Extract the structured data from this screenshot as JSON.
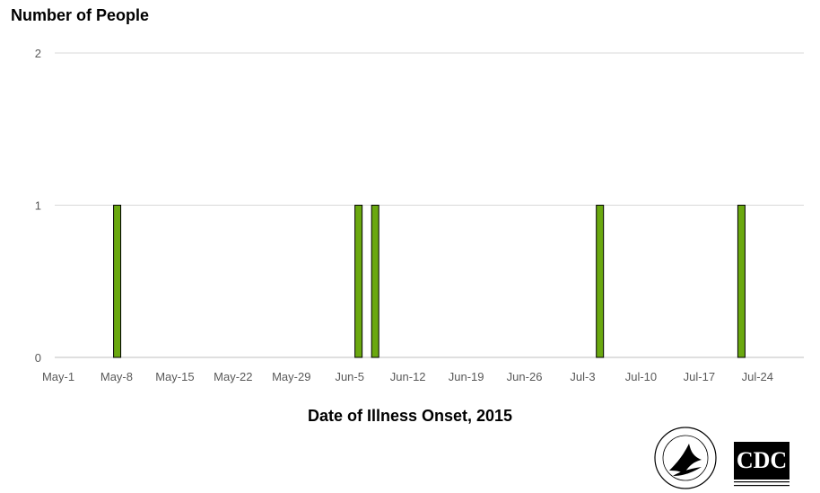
{
  "chart_data": {
    "type": "bar",
    "title": "",
    "xlabel": "Date of Illness Onset, 2015",
    "ylabel": "Number of People",
    "ylim": [
      0,
      2
    ],
    "y_ticks": [
      "0",
      "1",
      "2"
    ],
    "x_tick_labels": [
      "May-1",
      "May-8",
      "May-15",
      "May-22",
      "May-29",
      "Jun-5",
      "Jun-12",
      "Jun-19",
      "Jun-26",
      "Jul-3",
      "Jul-10",
      "Jul-17",
      "Jul-24"
    ],
    "x_range": [
      "2015-05-01",
      "2015-07-30"
    ],
    "categories": [
      "2015-05-08",
      "2015-06-06",
      "2015-06-08",
      "2015-07-05",
      "2015-07-22"
    ],
    "values": [
      1,
      1,
      1,
      1,
      1
    ],
    "grid": true,
    "legend": "none",
    "bar_color": "#6aa80f",
    "bar_edge_color": "#000000"
  },
  "logos": {
    "hhs_ring_text": "DEPARTMENT OF HEALTH & HUMAN SERVICES USA",
    "cdc_text": "CDC",
    "cdc_subtext": "CENTERS FOR DISEASE CONTROL AND PREVENTION"
  }
}
